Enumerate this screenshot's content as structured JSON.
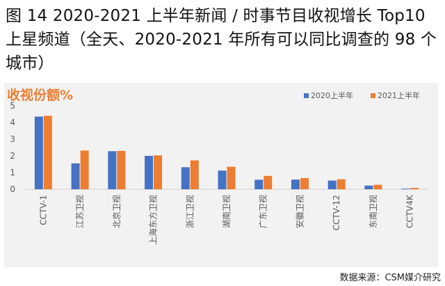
{
  "figure": {
    "title": "图 14 2020-2021 上半年新闻 / 时事节目收视增长 Top10 上星频道（全天、2020-2021 年所有可以同比调查的 98 个城市）",
    "source": "数据来源：CSM媒介研究"
  },
  "colors": {
    "series_2020": "#4472C4",
    "series_2021": "#ED7D31",
    "ylabel": "#ED7D31",
    "axis_text": "#595959",
    "background": "#F2F2F2"
  },
  "chart_data": {
    "type": "bar",
    "ylabel": "收视份额%",
    "xlabel": "",
    "ylim": [
      0,
      5
    ],
    "yticks": [
      0,
      1,
      2,
      3,
      4,
      5
    ],
    "grid": false,
    "legend_position": "top-right",
    "categories": [
      "CCTV-1",
      "江苏卫视",
      "北京卫视",
      "上海东方卫视",
      "浙江卫视",
      "湖南卫视",
      "广东卫视",
      "安徽卫视",
      "CCTV-12",
      "东南卫视",
      "CCTV4K"
    ],
    "series": [
      {
        "name": "2020上半年",
        "values": [
          4.35,
          1.55,
          2.28,
          2.0,
          1.32,
          1.12,
          0.57,
          0.58,
          0.52,
          0.22,
          0.04
        ]
      },
      {
        "name": "2021上半年",
        "values": [
          4.4,
          2.32,
          2.3,
          2.03,
          1.73,
          1.35,
          0.8,
          0.67,
          0.6,
          0.27,
          0.08
        ]
      }
    ]
  }
}
